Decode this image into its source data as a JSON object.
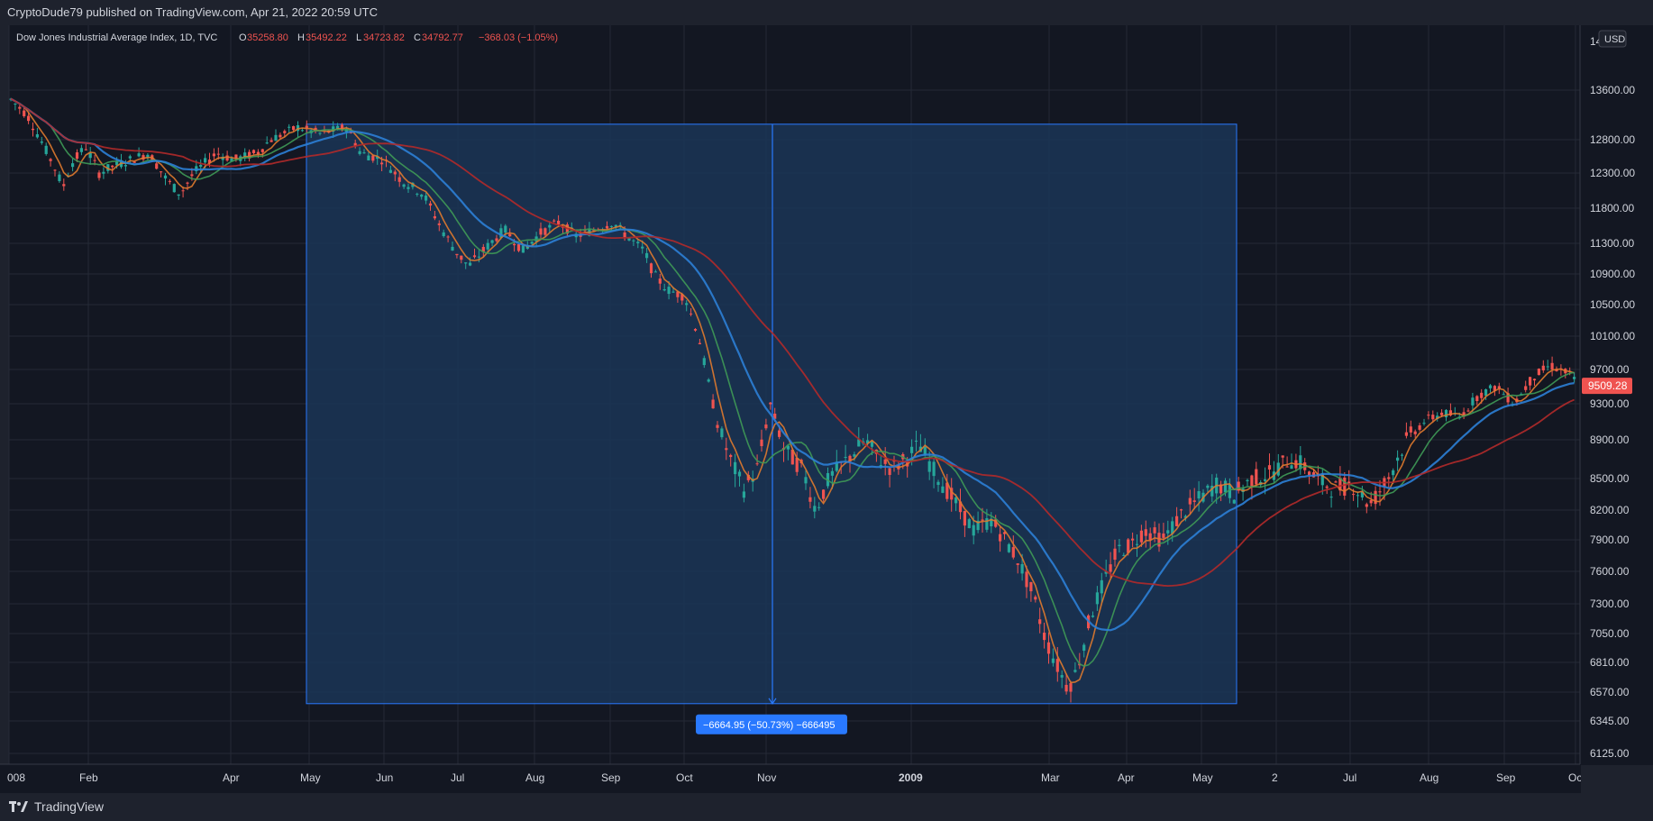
{
  "header": {
    "published": "CryptoDude79 published on TradingView.com, Apr 21, 2022 20:59 UTC"
  },
  "legend": {
    "symbol": "Dow Jones Industrial Average Index, 1D, TVC",
    "o_label": "O",
    "o_value": "35258.80",
    "h_label": "H",
    "h_value": "35492.22",
    "l_label": "L",
    "l_value": "34723.82",
    "c_label": "C",
    "c_value": "34792.77",
    "change": "−368.03 (−1.05%)"
  },
  "currency": "USD",
  "measure_label": "−6664.95 (−50.73%) −666495",
  "price_tag": "9509.28",
  "footer": {
    "brand": "TradingView",
    "logo_icon": "tradingview-logo-icon"
  },
  "colors": {
    "background": "#131722",
    "chrome": "#1e222d",
    "up": "#26a69a",
    "down": "#ef5350",
    "measure_fill": "#1b3556",
    "measure_line": "#2962ff",
    "ma_fast": "#e07a2e",
    "ma_mid": "#3f9a57",
    "ma_slow": "#2c7fd6",
    "ma_long": "#b22a2a"
  },
  "chart_data": {
    "type": "candlestick",
    "x_ticks": [
      "008",
      "Feb",
      "Apr",
      "May",
      "Jun",
      "Jul",
      "Aug",
      "Sep",
      "Oct",
      "Nov",
      "2009",
      "Mar",
      "Apr",
      "May",
      "2",
      "Jul",
      "Aug",
      "Sep",
      "Oc"
    ],
    "y_ticks": [
      6125,
      6345,
      6570,
      6810,
      7050,
      7300,
      7600,
      7900,
      8200,
      8500,
      8900,
      9300,
      9700,
      10100,
      10500,
      10900,
      11300,
      11800,
      12300,
      12800,
      13600
    ],
    "y_tick_labels": [
      "6125.00",
      "6345.00",
      "6570.00",
      "6810.00",
      "7050.00",
      "7300.00",
      "7600.00",
      "7900.00",
      "8200.00",
      "8500.00",
      "8900.00",
      "9300.00",
      "9700.00",
      "10100.00",
      "10500.00",
      "10900.00",
      "11300.00",
      "11800.00",
      "12300.00",
      "12800.00",
      "13600.00"
    ],
    "y_top_label_partial": "14",
    "candles": [
      [
        "Jan 02 2008",
        13300,
        13600
      ],
      [
        "Feb 2008",
        12400,
        12750
      ],
      [
        "Mar 2008",
        12000,
        12300
      ],
      [
        "Apr 2008",
        12600,
        12850
      ],
      [
        "May 2008",
        12900,
        13100
      ],
      [
        "Jun 2008",
        12300,
        12500
      ],
      [
        "Jul 2008",
        11100,
        11300
      ],
      [
        "Aug 2008",
        11600,
        11750
      ],
      [
        "Sep 2008",
        11400,
        11600
      ],
      [
        "Oct 2008",
        9100,
        9400
      ],
      [
        "Nov 2008",
        8600,
        8900
      ],
      [
        "Dec 2008",
        8700,
        8850
      ],
      [
        "Jan 2009",
        8400,
        8600
      ],
      [
        "Feb 2009",
        7300,
        7500
      ],
      [
        "Mar 2009",
        6600,
        6800
      ],
      [
        "Apr 2009",
        7800,
        8100
      ],
      [
        "May 2009",
        8400,
        8600
      ],
      [
        "Jun 2009",
        8600,
        8800
      ],
      [
        "Jul 2009",
        8300,
        8500
      ],
      [
        "Aug 2009",
        9300,
        9450
      ],
      [
        "Sep 2009",
        9600,
        9700
      ],
      [
        "Oct 2009",
        9500,
        9700
      ]
    ],
    "moving_averages": [
      "fast",
      "mid",
      "slow",
      "long"
    ],
    "measure": {
      "start_date": "May 2008",
      "end_date": "May 2009",
      "top_price": 13050,
      "bottom_price": 6480,
      "change": -6664.95,
      "change_pct": -50.73
    },
    "last_price": 9509.28
  }
}
